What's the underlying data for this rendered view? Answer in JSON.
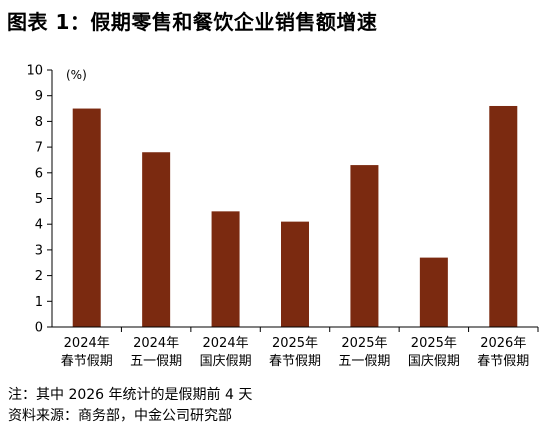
{
  "title": "图表 1：假期零售和餐饮企业销售额增速",
  "notes": {
    "note": "注：其中 2026 年统计的是假期前 4 天",
    "source": "资料来源：商务部，中金公司研究部"
  },
  "colors": {
    "bar": "#7b2a10",
    "axis": "#000000"
  },
  "chart_data": {
    "type": "bar",
    "unit_label": "(%)",
    "categories": [
      [
        "2024年",
        "春节假期"
      ],
      [
        "2024年",
        "五一假期"
      ],
      [
        "2024年",
        "国庆假期"
      ],
      [
        "2025年",
        "春节假期"
      ],
      [
        "2025年",
        "五一假期"
      ],
      [
        "2025年",
        "国庆假期"
      ],
      [
        "2026年",
        "春节假期"
      ]
    ],
    "values": [
      8.5,
      6.8,
      4.5,
      4.1,
      6.3,
      2.7,
      8.6
    ],
    "ylim": [
      0,
      10
    ],
    "yticks": [
      0,
      1,
      2,
      3,
      4,
      5,
      6,
      7,
      8,
      9,
      10
    ],
    "grid": false
  }
}
